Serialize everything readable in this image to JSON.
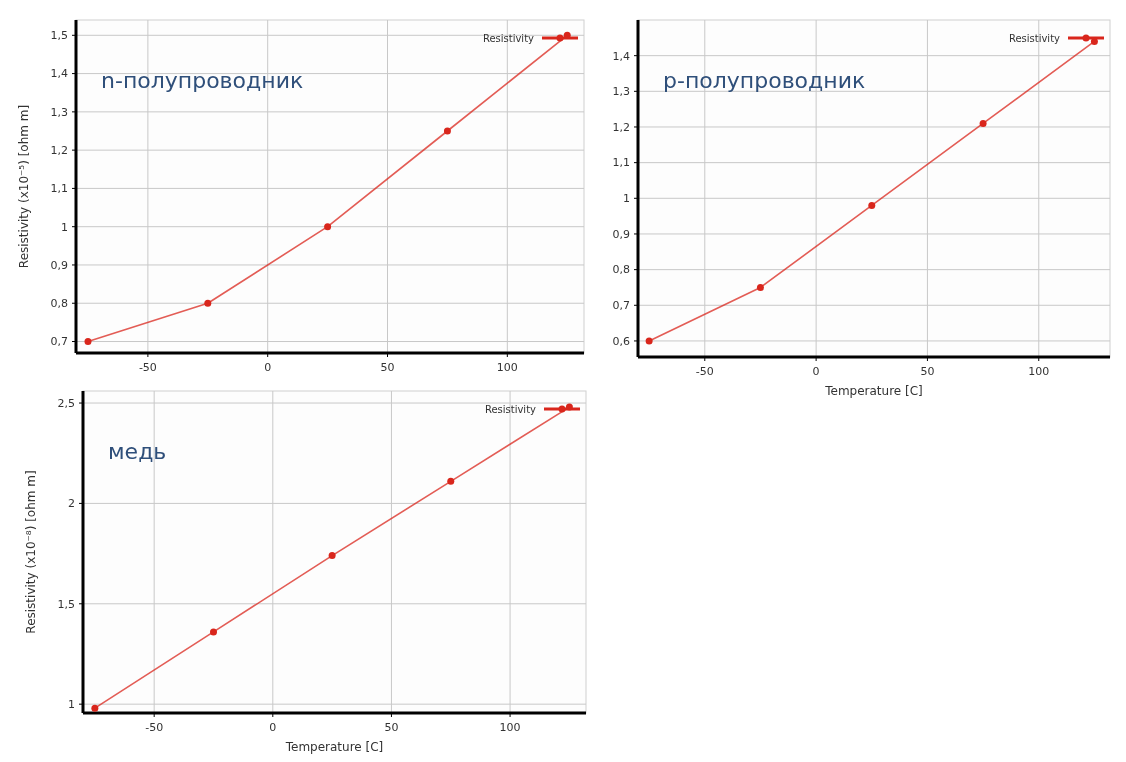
{
  "chart_data": [
    {
      "type": "line",
      "ylabel": "Resistivity  (x10⁻⁵)  [ohm m]",
      "annotations": [
        "n-полупроводник"
      ],
      "x": [
        -75,
        -25,
        25,
        75,
        125
      ],
      "series": [
        {
          "name": "Resistivity",
          "color": "#d9261c",
          "values": [
            0.7,
            0.8,
            1.0,
            1.25,
            1.5
          ]
        }
      ],
      "xlim": [
        -80,
        132
      ],
      "xticks": [
        -50,
        0,
        50,
        100
      ],
      "ylim": [
        0.67,
        1.54
      ],
      "yticks": [
        {
          "value": 0.7,
          "label": "0,7"
        },
        {
          "value": 0.8,
          "label": "0,8"
        },
        {
          "value": 0.9,
          "label": "0,9"
        },
        {
          "value": 1,
          "label": "1"
        },
        {
          "value": 1.1,
          "label": "1,1"
        },
        {
          "value": 1.2,
          "label": "1,2"
        },
        {
          "value": 1.3,
          "label": "1,3"
        },
        {
          "value": 1.4,
          "label": "1,4"
        },
        {
          "value": 1.5,
          "label": "1,5"
        }
      ],
      "grid": true,
      "legend": "top right",
      "marker": "circle"
    },
    {
      "type": "line",
      "xlabel": "Temperature [C]",
      "annotations": [
        "p-полупроводник"
      ],
      "x": [
        -75,
        -25,
        25,
        75,
        125
      ],
      "series": [
        {
          "name": "Resistivity",
          "color": "#d9261c",
          "values": [
            0.6,
            0.75,
            0.98,
            1.21,
            1.44
          ]
        }
      ],
      "xlim": [
        -80,
        132
      ],
      "xticks": [
        -50,
        0,
        50,
        100
      ],
      "ylim": [
        0.555,
        1.5
      ],
      "yticks": [
        {
          "value": 0.6,
          "label": "0,6"
        },
        {
          "value": 0.7,
          "label": "0,7"
        },
        {
          "value": 0.8,
          "label": "0,8"
        },
        {
          "value": 0.9,
          "label": "0,9"
        },
        {
          "value": 1,
          "label": "1"
        },
        {
          "value": 1.1,
          "label": "1,1"
        },
        {
          "value": 1.2,
          "label": "1,2"
        },
        {
          "value": 1.3,
          "label": "1,3"
        },
        {
          "value": 1.4,
          "label": "1,4"
        }
      ],
      "grid": true,
      "legend": "top right",
      "marker": "circle"
    },
    {
      "type": "line",
      "xlabel": "Temperature [C]",
      "ylabel": "Resistivity  (x10⁻⁸)  [ohm m]",
      "annotations": [
        "медь"
      ],
      "x": [
        -75,
        -25,
        25,
        75,
        125
      ],
      "series": [
        {
          "name": "Resistivity",
          "color": "#d9261c",
          "values": [
            0.98,
            1.36,
            1.74,
            2.11,
            2.48
          ]
        }
      ],
      "xlim": [
        -80,
        132
      ],
      "xticks": [
        -50,
        0,
        50,
        100
      ],
      "ylim": [
        0.956,
        2.56
      ],
      "yticks": [
        {
          "value": 1,
          "label": "1"
        },
        {
          "value": 1.5,
          "label": "1,5"
        },
        {
          "value": 2,
          "label": "2"
        },
        {
          "value": 2.5,
          "label": "2,5"
        }
      ],
      "grid": true,
      "legend": "top right",
      "marker": "circle"
    }
  ]
}
